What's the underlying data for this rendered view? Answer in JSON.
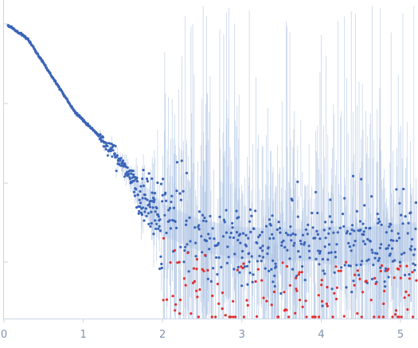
{
  "chart_data": {
    "type": "scatter",
    "title": "",
    "xlabel": "",
    "ylabel": "",
    "xlim": [
      0,
      5.2
    ],
    "ylim": [
      0,
      1
    ],
    "log_y": true,
    "x_ticks": [
      "0",
      "1",
      "2",
      "3",
      "4",
      "5"
    ],
    "y_ticks": [],
    "grid": false,
    "legend": "none",
    "colors": {
      "main_points": "#3a64b8",
      "negative_points": "#e03030",
      "error_bars": "#a9c0e2",
      "error_band": "#c6d6ee",
      "axis": "#c9d6ea",
      "tick_labels": "#7f93ad"
    },
    "series": [
      {
        "points_with_error_bars": true,
        "trend_x": [
          0.05,
          0.3,
          0.6,
          0.9,
          1.2,
          1.5,
          1.7,
          2.0,
          2.5,
          3.0,
          3.5,
          4.0,
          4.5,
          5.0,
          5.2
        ],
        "trend_y": [
          0.996,
          0.955,
          0.845,
          0.735,
          0.665,
          0.58,
          0.49,
          0.415,
          0.365,
          0.345,
          0.34,
          0.338,
          0.335,
          0.345,
          0.35
        ]
      }
    ]
  }
}
